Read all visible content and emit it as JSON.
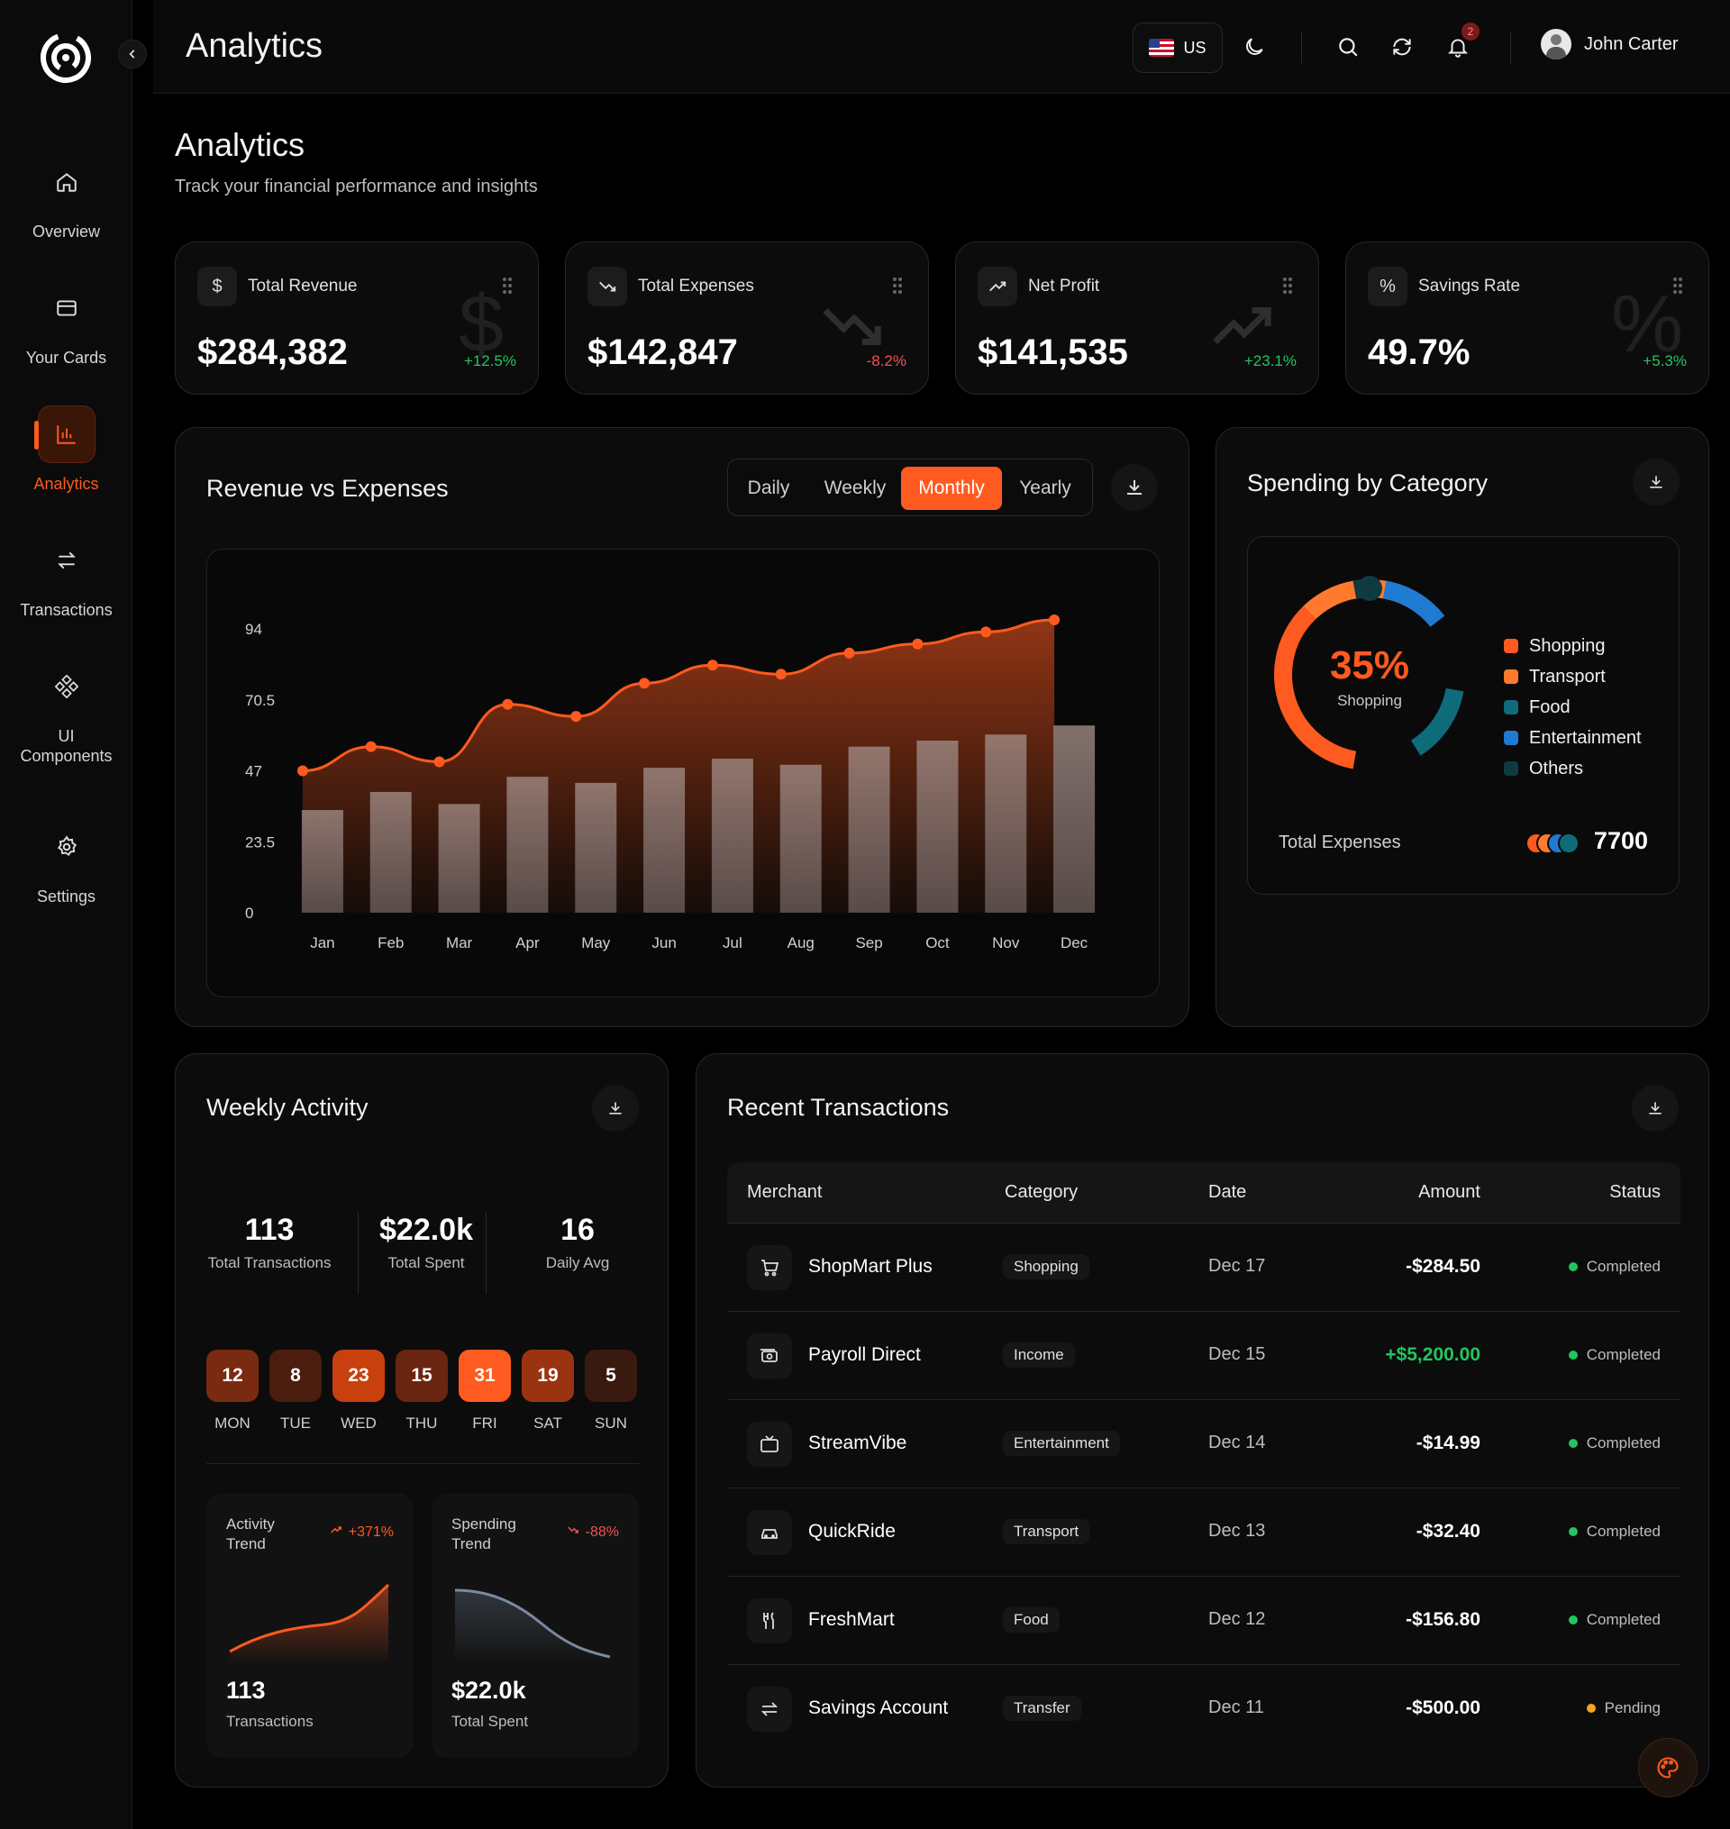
{
  "colors": {
    "accent": "#ff5a1f",
    "positive": "#22c55e",
    "negative": "#f0525a",
    "pending": "#f5a524",
    "bg": "#000000"
  },
  "sidebar": {
    "items": [
      {
        "label": "Overview",
        "icon": "home-icon"
      },
      {
        "label": "Your Cards",
        "icon": "card-icon"
      },
      {
        "label": "Analytics",
        "icon": "bar-chart-icon",
        "active": true
      },
      {
        "label": "Transactions",
        "icon": "swap-icon"
      },
      {
        "label": "UI Components",
        "icon": "components-icon"
      },
      {
        "label": "Settings",
        "icon": "gear-icon"
      }
    ]
  },
  "topbar": {
    "title": "Analytics",
    "lang": "US",
    "notifications": "2",
    "user": "John Carter"
  },
  "header": {
    "title": "Analytics",
    "subtitle": "Track your financial performance and insights"
  },
  "stats": [
    {
      "label": "Total Revenue",
      "icon": "dollar-icon",
      "value": "$284,382",
      "change": "+12.5%",
      "trend": "up"
    },
    {
      "label": "Total Expenses",
      "icon": "trend-down-icon",
      "value": "$142,847",
      "change": "-8.2%",
      "trend": "down"
    },
    {
      "label": "Net Profit",
      "icon": "trend-up-icon",
      "value": "$141,535",
      "change": "+23.1%",
      "trend": "up"
    },
    {
      "label": "Savings Rate",
      "icon": "percent-icon",
      "value": "49.7%",
      "change": "+5.3%",
      "trend": "up"
    }
  ],
  "revenue": {
    "title": "Revenue vs Expenses",
    "tabs": [
      "Daily",
      "Weekly",
      "Monthly",
      "Yearly"
    ],
    "active_tab": "Monthly"
  },
  "chart_data": {
    "type": "bar",
    "title": "",
    "categories": [
      "Jan",
      "Feb",
      "Mar",
      "Apr",
      "May",
      "Jun",
      "Jul",
      "Aug",
      "Sep",
      "Oct",
      "Nov",
      "Dec"
    ],
    "y_ticks": [
      "94",
      "70.5",
      "47",
      "23.5",
      "0"
    ],
    "ylim": [
      0,
      94
    ],
    "series": [
      {
        "type": "line",
        "values": [
          47,
          55,
          50,
          69,
          65,
          76,
          82,
          79,
          86,
          89,
          93,
          97
        ]
      },
      {
        "type": "bar",
        "values": [
          34,
          40,
          36,
          45,
          43,
          48,
          51,
          49,
          55,
          57,
          59,
          62
        ]
      }
    ],
    "grid": false
  },
  "spending": {
    "title": "Spending by Category",
    "center_value": "35%",
    "center_label": "Shopping",
    "legend": [
      {
        "name": "Shopping",
        "color": "#ff5a1f"
      },
      {
        "name": "Transport",
        "color": "#ff7a2f"
      },
      {
        "name": "Food",
        "color": "#0e6b7a"
      },
      {
        "name": "Entertainment",
        "color": "#1f7ad1"
      },
      {
        "name": "Others",
        "color": "#0f3a40"
      }
    ],
    "total_label": "Total Expenses",
    "total_value": "7700"
  },
  "weekly": {
    "title": "Weekly Activity",
    "stats": [
      {
        "value": "113",
        "label": "Total Transactions"
      },
      {
        "value": "$22.0k",
        "label": "Total Spent"
      },
      {
        "value": "16",
        "label": "Daily Avg"
      }
    ],
    "days": [
      {
        "count": "12",
        "day": "MON"
      },
      {
        "count": "8",
        "day": "TUE"
      },
      {
        "count": "23",
        "day": "WED"
      },
      {
        "count": "15",
        "day": "THU"
      },
      {
        "count": "31",
        "day": "FRI"
      },
      {
        "count": "19",
        "day": "SAT"
      },
      {
        "count": "5",
        "day": "SUN"
      }
    ],
    "activity_trend": {
      "title": "Activity Trend",
      "change": "+371%",
      "value": "113",
      "label": "Transactions"
    },
    "spending_trend": {
      "title": "Spending Trend",
      "change": "-88%",
      "value": "$22.0k",
      "label": "Total Spent"
    }
  },
  "transactions": {
    "title": "Recent Transactions",
    "columns": [
      "Merchant",
      "Category",
      "Date",
      "Amount",
      "Status"
    ],
    "rows": [
      {
        "merchant": "ShopMart Plus",
        "icon": "cart-icon",
        "category": "Shopping",
        "date": "Dec 17",
        "amount": "-$284.50",
        "status": "Completed"
      },
      {
        "merchant": "Payroll Direct",
        "icon": "cash-icon",
        "category": "Income",
        "date": "Dec 15",
        "amount": "+$5,200.00",
        "status": "Completed"
      },
      {
        "merchant": "StreamVibe",
        "icon": "tv-icon",
        "category": "Entertainment",
        "date": "Dec 14",
        "amount": "-$14.99",
        "status": "Completed"
      },
      {
        "merchant": "QuickRide",
        "icon": "car-icon",
        "category": "Transport",
        "date": "Dec 13",
        "amount": "-$32.40",
        "status": "Completed"
      },
      {
        "merchant": "FreshMart",
        "icon": "utensils-icon",
        "category": "Food",
        "date": "Dec 12",
        "amount": "-$156.80",
        "status": "Completed"
      },
      {
        "merchant": "Savings Account",
        "icon": "transfer-icon",
        "category": "Transfer",
        "date": "Dec 11",
        "amount": "-$500.00",
        "status": "Pending"
      }
    ]
  }
}
